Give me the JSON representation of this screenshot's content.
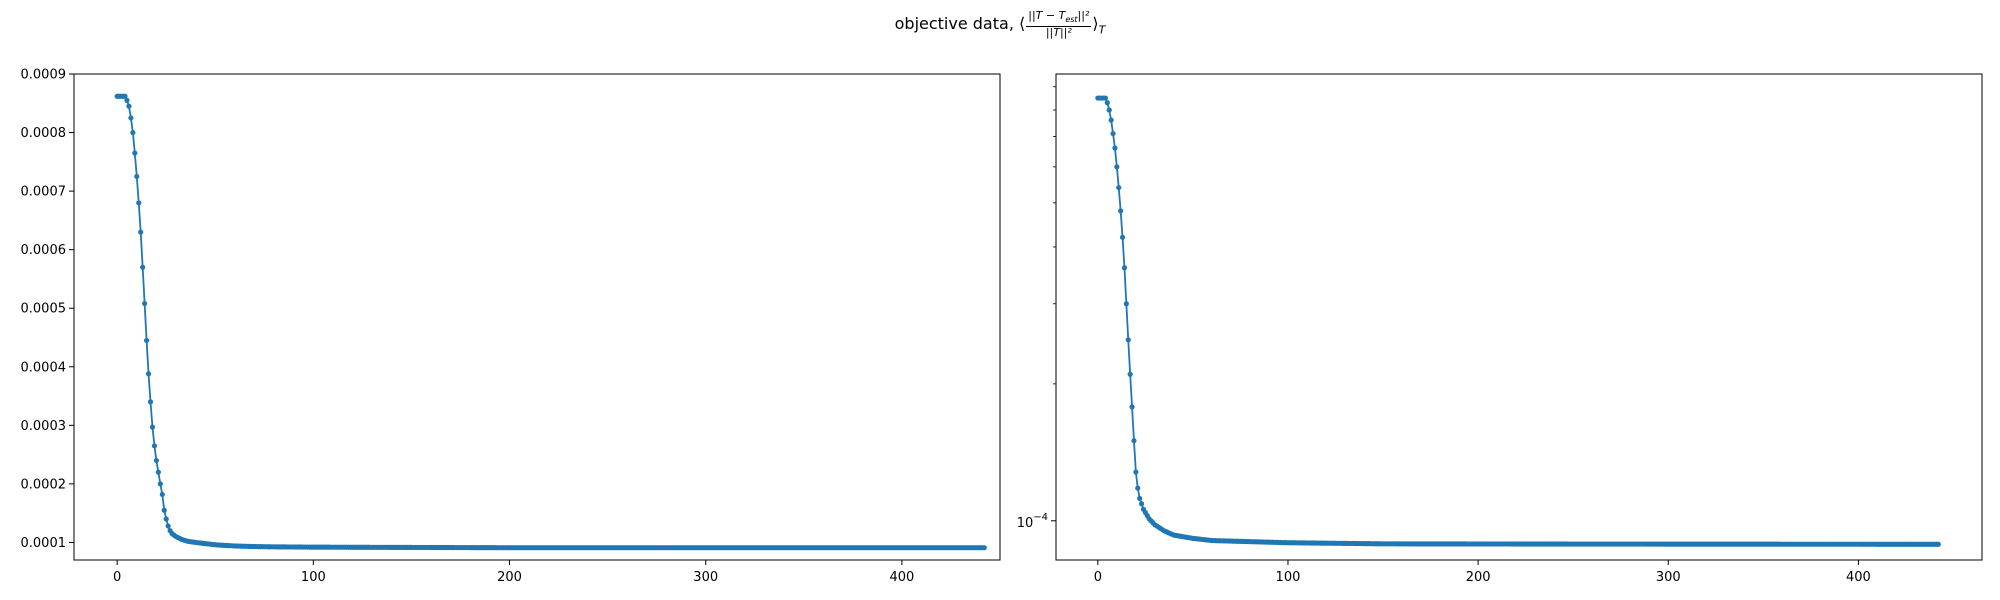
{
  "figure": {
    "suptitle_text": "objective data,",
    "suptitle_math_open": "⟨",
    "suptitle_frac_num": "||T − T",
    "suptitle_frac_num_sub": "est",
    "suptitle_frac_num_tail": "||²",
    "suptitle_frac_den": "||T||²",
    "suptitle_math_close": "⟩",
    "suptitle_math_sub": "T"
  },
  "colors": {
    "series": "#1f77b4",
    "axes": "#000000"
  },
  "chart_data": [
    {
      "type": "line",
      "yscale": "linear",
      "title": "",
      "xlabel": "",
      "ylabel": "",
      "xlim": [
        -22,
        450
      ],
      "ylim": [
        7e-05,
        0.0009
      ],
      "xticks": [
        0,
        100,
        200,
        300,
        400
      ],
      "xtick_labels": [
        "0",
        "100",
        "200",
        "300",
        "400"
      ],
      "yticks": [
        0.0001,
        0.0002,
        0.0003,
        0.0004,
        0.0005,
        0.0006,
        0.0007,
        0.0008,
        0.0009
      ],
      "ytick_labels": [
        "0.0001",
        "0.0002",
        "0.0003",
        "0.0004",
        "0.0005",
        "0.0006",
        "0.0007",
        "0.0008",
        "0.0009"
      ],
      "grid": false,
      "marker": "dot",
      "x_range": [
        0,
        442
      ],
      "series": [
        {
          "keypoints": [
            [
              0,
              0.000862
            ],
            [
              4,
              0.000862
            ],
            [
              5,
              0.000855
            ],
            [
              6,
              0.000845
            ],
            [
              7,
              0.000825
            ],
            [
              8,
              0.0008
            ],
            [
              9,
              0.000765
            ],
            [
              10,
              0.000725
            ],
            [
              11,
              0.00068
            ],
            [
              12,
              0.00063
            ],
            [
              13,
              0.00057
            ],
            [
              14,
              0.000508
            ],
            [
              15,
              0.000445
            ],
            [
              16,
              0.000388
            ],
            [
              17,
              0.00034
            ],
            [
              18,
              0.000297
            ],
            [
              19,
              0.000265
            ],
            [
              20,
              0.00024
            ],
            [
              21,
              0.00022
            ],
            [
              22,
              0.0002
            ],
            [
              23,
              0.000182
            ],
            [
              24,
              0.000155
            ],
            [
              25,
              0.00014
            ],
            [
              26,
              0.000128
            ],
            [
              27,
              0.00012
            ],
            [
              28,
              0.000115
            ],
            [
              30,
              0.00011
            ],
            [
              33,
              0.000105
            ],
            [
              36,
              0.000102
            ],
            [
              40,
              0.0001
            ],
            [
              45,
              9.8e-05
            ],
            [
              50,
              9.6e-05
            ],
            [
              60,
              9.4e-05
            ],
            [
              70,
              9.3e-05
            ],
            [
              80,
              9.25e-05
            ],
            [
              100,
              9.2e-05
            ],
            [
              150,
              9.15e-05
            ],
            [
              200,
              9.1e-05
            ],
            [
              300,
              9.1e-05
            ],
            [
              442,
              9.1e-05
            ]
          ]
        }
      ]
    },
    {
      "type": "line",
      "yscale": "log",
      "title": "",
      "xlabel": "",
      "ylabel": "",
      "xlim": [
        -22,
        465
      ],
      "ylim": [
        8.2e-05,
        0.00096
      ],
      "xticks": [
        0,
        100,
        200,
        300,
        400
      ],
      "xtick_labels": [
        "0",
        "100",
        "200",
        "300",
        "400"
      ],
      "yticks_major": [
        0.0001
      ],
      "ytick_major_base": "10",
      "ytick_major_exp": "−4",
      "yticks_minor": [
        0.0002,
        0.0003,
        0.0004,
        0.0005,
        0.0006,
        0.0007,
        0.0008,
        0.0009
      ],
      "grid": false,
      "marker": "dot",
      "x_range": [
        0,
        442
      ],
      "series": [
        {
          "keypoints": [
            [
              0,
              0.00085
            ],
            [
              4,
              0.00085
            ],
            [
              5,
              0.00083
            ],
            [
              6,
              0.0008
            ],
            [
              7,
              0.00076
            ],
            [
              8,
              0.00071
            ],
            [
              9,
              0.00066
            ],
            [
              10,
              0.0006
            ],
            [
              11,
              0.00054
            ],
            [
              12,
              0.00048
            ],
            [
              13,
              0.00042
            ],
            [
              14,
              0.00036
            ],
            [
              15,
              0.0003
            ],
            [
              16,
              0.00025
            ],
            [
              17,
              0.00021
            ],
            [
              18,
              0.000178
            ],
            [
              19,
              0.00015
            ],
            [
              20,
              0.000128
            ],
            [
              21,
              0.000118
            ],
            [
              22,
              0.000112
            ],
            [
              24,
              0.000106
            ],
            [
              27,
              0.000101
            ],
            [
              30,
              9.8e-05
            ],
            [
              35,
              9.5e-05
            ],
            [
              40,
              9.3e-05
            ],
            [
              50,
              9.15e-05
            ],
            [
              60,
              9.05e-05
            ],
            [
              80,
              9e-05
            ],
            [
              100,
              8.95e-05
            ],
            [
              150,
              8.9e-05
            ],
            [
              250,
              8.89e-05
            ],
            [
              442,
              8.88e-05
            ]
          ]
        }
      ]
    }
  ]
}
